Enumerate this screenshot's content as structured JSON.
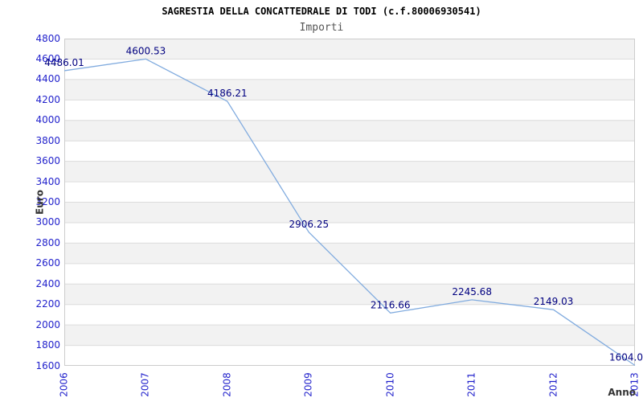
{
  "chart_data": {
    "type": "line",
    "title": "SAGRESTIA DELLA CONCATTEDRALE DI TODI (c.f.80006930541)",
    "subtitle": "Importi",
    "xlabel": "Anno",
    "ylabel": "Euro",
    "categories": [
      "2006",
      "2007",
      "2008",
      "2009",
      "2010",
      "2011",
      "2012",
      "2013"
    ],
    "values": [
      4486.01,
      4600.53,
      4186.21,
      2906.25,
      2116.66,
      2245.68,
      2149.03,
      1604.0
    ],
    "point_labels": [
      "4486.01",
      "4600.53",
      "4186.21",
      "2906.25",
      "2116.66",
      "2245.68",
      "2149.03",
      "1604.0"
    ],
    "ylim": [
      1600,
      4800
    ],
    "y_tick_step": 200,
    "y_ticks": [
      4800,
      4600,
      4400,
      4200,
      4000,
      3800,
      3600,
      3400,
      3200,
      3000,
      2800,
      2600,
      2400,
      2200,
      2000,
      1800,
      1600
    ],
    "legend": "none",
    "grid": "horizontal gridlines with alternating shaded bands",
    "colors": {
      "line": "#82acdf",
      "axis_tick_label": "#2222cc",
      "data_label": "#000080",
      "band": "#f2f2f2",
      "band_alt": "#ffffff",
      "grid_line": "#dcdcdc",
      "plot_border": "#cccccc",
      "title": "#000000",
      "subtitle": "#555555",
      "axis_title": "#333333",
      "background": "#ffffff"
    }
  }
}
